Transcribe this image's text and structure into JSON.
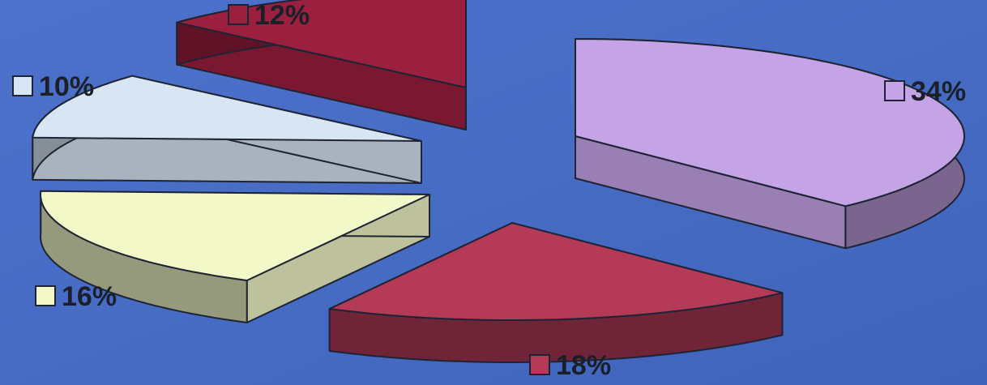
{
  "chart_data": {
    "type": "pie",
    "style": "3d-exploded",
    "slices": [
      {
        "label": "34%",
        "value": 34,
        "color": "#c4a3e6"
      },
      {
        "label": "18%",
        "value": 18,
        "color": "#b53a58"
      },
      {
        "label": "16%",
        "value": 16,
        "color": "#f2f8c8"
      },
      {
        "label": "10%",
        "value": 10,
        "color": "#d8e6f4"
      },
      {
        "label": "12%",
        "value": 12,
        "color": "#9b1f3e"
      }
    ],
    "title": "",
    "legend": "none"
  },
  "background_color": "#4a6fc4"
}
